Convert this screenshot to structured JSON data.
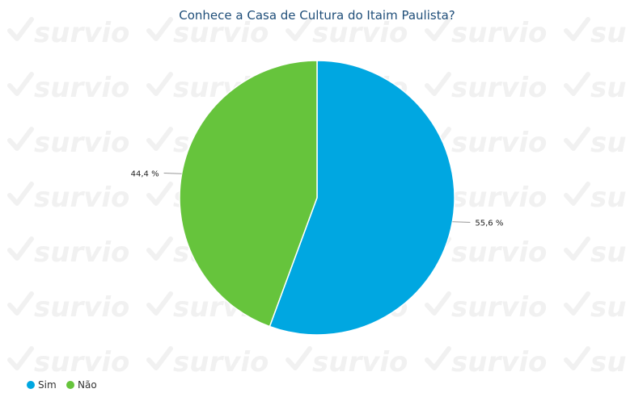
{
  "watermark": {
    "text": "survio",
    "icon": "checkmark-icon",
    "color": "#f1f1f1"
  },
  "chart_data": {
    "type": "pie",
    "title": "Conhece a Casa de Cultura do Itaim Paulista?",
    "categories": [
      "Sim",
      "Não"
    ],
    "values": [
      55.6,
      44.4
    ],
    "labels": [
      "55,6 %",
      "44,4 %"
    ],
    "colors": [
      "#00a7e1",
      "#66c43c"
    ],
    "legend": {
      "position": "bottom-left",
      "entries": [
        "Sim",
        "Não"
      ]
    }
  }
}
